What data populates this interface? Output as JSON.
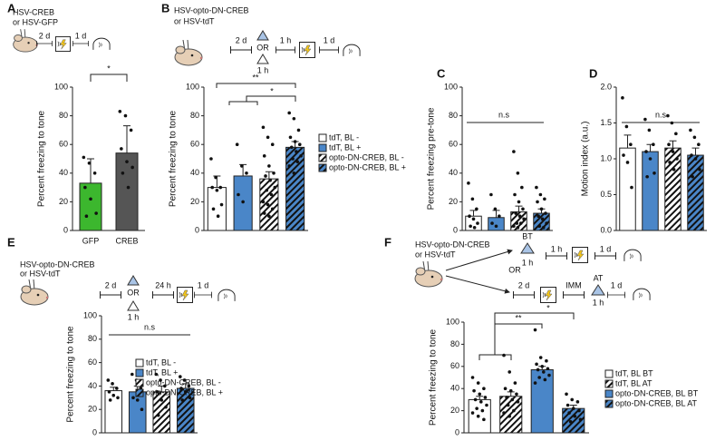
{
  "chart_data": [
    {
      "type": "bar",
      "panel": "A",
      "protocol": [
        "HSV-CREB",
        "or HSV-GFP",
        "2 d",
        "1 d"
      ],
      "annotations": [
        "*"
      ],
      "ylabel": "Percent freezing to tone",
      "ylim": [
        0,
        100
      ],
      "yticks": [
        0,
        20,
        40,
        60,
        80,
        100
      ],
      "categories": [
        "GFP",
        "CREB"
      ],
      "values": [
        33,
        54
      ],
      "errors": [
        17,
        19
      ],
      "colors": [
        "#3cb72e",
        "#555555"
      ],
      "points": [
        [
          51,
          47,
          40,
          30,
          22,
          12,
          10
        ],
        [
          83,
          80,
          70,
          57,
          48,
          44,
          40,
          30
        ]
      ]
    },
    {
      "type": "bar",
      "panel": "B",
      "protocol": [
        "HSV-opto-DN-CREB",
        "or HSV-tdT",
        "2 d",
        "OR",
        "1 h",
        "1 h",
        "1 d"
      ],
      "annotations": [
        "**",
        "*"
      ],
      "ylabel": "Percent freezing to tone",
      "ylim": [
        0,
        100
      ],
      "yticks": [
        0,
        20,
        40,
        60,
        80,
        100
      ],
      "series": [
        {
          "name": "tdT, BL -",
          "color": "#ffffff",
          "hatch": false,
          "value": 30,
          "error": 8,
          "points": [
            50,
            37,
            30,
            30,
            28,
            18,
            15,
            10
          ]
        },
        {
          "name": "tdT, BL +",
          "color": "#4a86c8",
          "hatch": false,
          "value": 38,
          "error": 8,
          "points": [
            60,
            45,
            40,
            25,
            20
          ]
        },
        {
          "name": "opto-DN-CREB, BL -",
          "color": "#ffffff",
          "hatch": true,
          "value": 36,
          "error": 5,
          "points": [
            72,
            65,
            60,
            52,
            45,
            40,
            38,
            35,
            30,
            28,
            25,
            20,
            18,
            15,
            12,
            10
          ]
        },
        {
          "name": "opto-DN-CREB, BL +",
          "color": "#4a86c8",
          "hatch": true,
          "value": 58,
          "error": 4,
          "points": [
            82,
            78,
            70,
            65,
            62,
            60,
            58,
            55,
            52,
            50,
            48,
            45,
            40
          ]
        }
      ]
    },
    {
      "type": "bar",
      "panel": "C",
      "annotations": [
        "n.s"
      ],
      "ylabel": "Percent freezing pre-tone",
      "ylim": [
        0,
        100
      ],
      "yticks": [
        0,
        20,
        40,
        60,
        80,
        100
      ],
      "series": [
        {
          "color": "#ffffff",
          "hatch": false,
          "value": 10,
          "error": 4,
          "points": [
            33,
            22,
            15,
            10,
            8,
            5,
            3,
            2
          ]
        },
        {
          "color": "#4a86c8",
          "hatch": false,
          "value": 9,
          "error": 5,
          "points": [
            25,
            15,
            10,
            5,
            3
          ]
        },
        {
          "color": "#ffffff",
          "hatch": true,
          "value": 13,
          "error": 4,
          "points": [
            55,
            40,
            30,
            25,
            20,
            15,
            12,
            10,
            8,
            5,
            5,
            3,
            2
          ]
        },
        {
          "color": "#4a86c8",
          "hatch": true,
          "value": 12,
          "error": 3,
          "points": [
            30,
            25,
            22,
            20,
            15,
            12,
            10,
            8,
            5,
            3,
            2
          ]
        }
      ]
    },
    {
      "type": "bar",
      "panel": "D",
      "annotations": [
        "n.s"
      ],
      "ylabel": "Motion index (a.u.)",
      "ylim": [
        0,
        2
      ],
      "yticks": [
        {
          "value": 0,
          "label": "0.0"
        },
        0.5,
        {
          "value": 1,
          "label": "1.0"
        },
        1.5,
        {
          "value": 2,
          "label": "2.0"
        }
      ],
      "series": [
        {
          "color": "#ffffff",
          "hatch": false,
          "value": 1.15,
          "error": 0.18,
          "points": [
            1.85,
            1.45,
            1.2,
            1.05,
            0.95,
            0.6
          ]
        },
        {
          "color": "#4a86c8",
          "hatch": false,
          "value": 1.1,
          "error": 0.1,
          "points": [
            1.55,
            1.4,
            1.2,
            1.1,
            1.0,
            0.8,
            0.75
          ]
        },
        {
          "color": "#ffffff",
          "hatch": true,
          "value": 1.15,
          "error": 0.1,
          "points": [
            1.6,
            1.5,
            1.35,
            1.2,
            1.1,
            1.0,
            0.95,
            0.85
          ]
        },
        {
          "color": "#4a86c8",
          "hatch": true,
          "value": 1.05,
          "error": 0.1,
          "points": [
            1.4,
            1.3,
            1.2,
            1.05,
            1.0,
            0.85,
            0.75
          ]
        }
      ]
    },
    {
      "type": "bar",
      "panel": "E",
      "protocol": [
        "HSV-opto-DN-CREB",
        "or HSV-tdT",
        "2 d",
        "OR",
        "1 h",
        "24 h",
        "1 d"
      ],
      "annotations": [
        "n.s"
      ],
      "ylabel": "Percent freezing to tone",
      "ylim": [
        0,
        100
      ],
      "yticks": [
        0,
        20,
        40,
        60,
        80,
        100
      ],
      "series": [
        {
          "name": "tdT, BL -",
          "color": "#ffffff",
          "hatch": false,
          "value": 36,
          "error": 3,
          "points": [
            45,
            42,
            38,
            35,
            32,
            30,
            28
          ]
        },
        {
          "name": "tdT, BL +",
          "color": "#4a86c8",
          "hatch": false,
          "value": 35,
          "error": 5,
          "points": [
            50,
            45,
            38,
            30,
            28,
            20
          ]
        },
        {
          "name": "opto-DN-CREB, BL -",
          "color": "#ffffff",
          "hatch": true,
          "value": 35,
          "error": 5,
          "points": [
            50,
            45,
            40,
            35,
            28,
            22,
            15
          ]
        },
        {
          "name": "opto-DN-CREB, BL +",
          "color": "#4a86c8",
          "hatch": true,
          "value": 38,
          "error": 4,
          "points": [
            48,
            45,
            40,
            38,
            35,
            30,
            28
          ]
        }
      ]
    },
    {
      "type": "bar",
      "panel": "F",
      "protocol": [
        "HSV-opto-DN-CREB",
        "or HSV-tdT",
        "BT",
        "1 h",
        "1 h",
        "1 d",
        "OR",
        "2 d",
        "IMM",
        "AT",
        "1 h",
        "1 d"
      ],
      "annotations": [
        "**",
        "*"
      ],
      "ylabel": "Percent freezing to tone",
      "ylim": [
        0,
        100
      ],
      "yticks": [
        0,
        20,
        40,
        60,
        80,
        100
      ],
      "series": [
        {
          "name": "tdT, BL BT",
          "color": "#ffffff",
          "hatch": false,
          "value": 30,
          "error": 3,
          "points": [
            50,
            45,
            40,
            38,
            35,
            32,
            30,
            28,
            25,
            22,
            20,
            18,
            15,
            12
          ]
        },
        {
          "name": "tdT, BL AT",
          "color": "#ffffff",
          "hatch": true,
          "value": 33,
          "error": 4,
          "points": [
            70,
            55,
            45,
            40,
            38,
            35,
            32,
            30,
            28,
            25,
            20,
            18,
            15
          ]
        },
        {
          "name": "opto-DN-CREB, BL BT",
          "color": "#4a86c8",
          "hatch": false,
          "value": 57,
          "error": 3,
          "points": [
            93,
            68,
            65,
            62,
            60,
            58,
            57,
            55,
            52,
            50,
            48,
            45
          ]
        },
        {
          "name": "opto-DN-CREB, BL AT",
          "color": "#4a86c8",
          "hatch": true,
          "value": 22,
          "error": 3,
          "points": [
            35,
            30,
            28,
            25,
            22,
            20,
            18,
            15,
            12,
            10
          ]
        }
      ]
    }
  ]
}
